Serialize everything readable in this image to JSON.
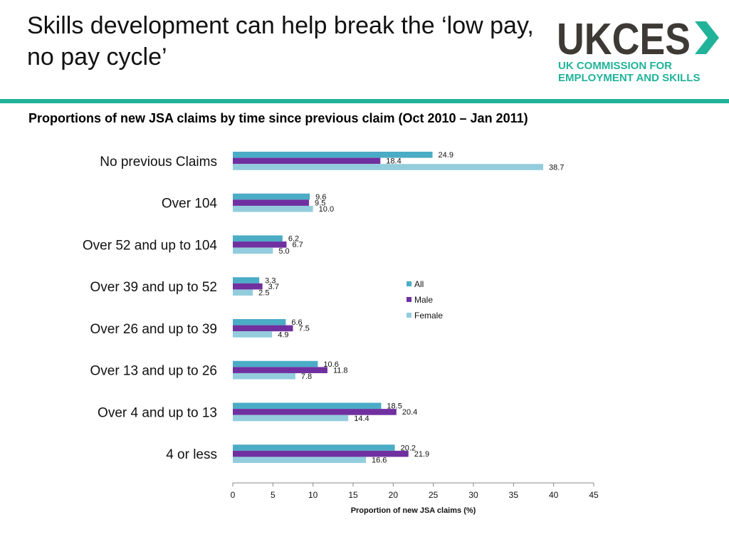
{
  "slide": {
    "title": "Skills development can help break the ‘low pay, no pay cycle’"
  },
  "logo": {
    "wordmark": "UKCES",
    "line1": "UK COMMISSION FOR",
    "line2": "EMPLOYMENT AND SKILLS",
    "brand_color": "#3d3935",
    "accent_color": "#21b39a"
  },
  "chart_data": {
    "type": "bar",
    "orientation": "horizontal",
    "title": "Proportions of new JSA claims by time since previous claim (Oct 2010 – Jan 2011)",
    "xlabel": "Proportion of new JSA claims (%)",
    "ylabel": "",
    "xlim": [
      0,
      45
    ],
    "xticks": [
      0,
      5,
      10,
      15,
      20,
      25,
      30,
      35,
      40,
      45
    ],
    "grid": false,
    "legend_position": "center-right",
    "categories": [
      "No previous Claims",
      "Over 104",
      "Over 52 and up to 104",
      "Over 39 and up to 52",
      "Over 26 and up to 39",
      "Over 13 and up to 26",
      "Over 4 and up to 13",
      "4 or less"
    ],
    "series": [
      {
        "name": "All",
        "color": "#4bacc6",
        "values": [
          24.9,
          9.6,
          6.2,
          3.3,
          6.6,
          10.6,
          18.5,
          20.2
        ],
        "labels": [
          "24.9",
          "9.6",
          "6.2",
          "3.3",
          "6.6",
          "10.6",
          "18.5",
          "20.2"
        ]
      },
      {
        "name": "Male",
        "color": "#7030a0",
        "values": [
          18.4,
          9.5,
          6.7,
          3.7,
          7.5,
          11.8,
          20.4,
          21.9
        ],
        "labels": [
          "18.4",
          "9.5",
          "6.7",
          "3.7",
          "7.5",
          "11.8",
          "20.4",
          "21.9"
        ]
      },
      {
        "name": "Female",
        "color": "#93cddd",
        "values": [
          38.7,
          10.0,
          5.0,
          2.5,
          4.9,
          7.8,
          14.4,
          16.6
        ],
        "labels": [
          "38.7",
          "10.0",
          "5.0",
          "2.5",
          "4.9",
          "7.8",
          "14.4",
          "16.6"
        ]
      }
    ]
  }
}
